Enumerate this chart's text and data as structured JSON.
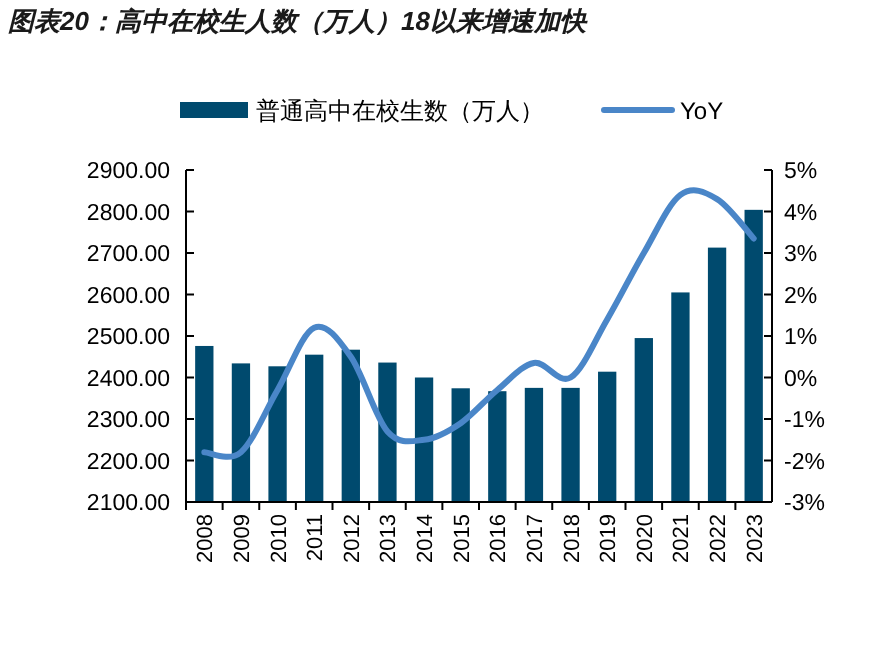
{
  "chart_data": {
    "type": "bar",
    "title": "图表20：高中在校生人数（万人）18以来增速加快",
    "categories": [
      "2008",
      "2009",
      "2010",
      "2011",
      "2012",
      "2013",
      "2014",
      "2015",
      "2016",
      "2017",
      "2018",
      "2019",
      "2020",
      "2021",
      "2022",
      "2023"
    ],
    "series": [
      {
        "name": "普通高中在校生数（万人）",
        "color": "#004a6e",
        "values": [
          2476,
          2434,
          2427,
          2455,
          2467,
          2436,
          2400,
          2374,
          2367,
          2375,
          2375,
          2414,
          2495,
          2605,
          2713,
          2804
        ]
      },
      {
        "name": "YoY",
        "type": "line",
        "axis": "y2",
        "color": "#4a86c8",
        "values": [
          -1.8,
          -1.8,
          -0.3,
          1.2,
          0.5,
          -1.3,
          -1.5,
          -1.1,
          -0.3,
          0.35,
          0.0,
          1.4,
          3.0,
          4.4,
          4.3,
          3.35
        ]
      }
    ],
    "ylim": [
      2100,
      2900
    ],
    "yticks": [
      {
        "value": 2100,
        "label": "2100.00"
      },
      {
        "value": 2200,
        "label": "2200.00"
      },
      {
        "value": 2300,
        "label": "2300.00"
      },
      {
        "value": 2400,
        "label": "2400.00"
      },
      {
        "value": 2500,
        "label": "2500.00"
      },
      {
        "value": 2600,
        "label": "2600.00"
      },
      {
        "value": 2700,
        "label": "2700.00"
      },
      {
        "value": 2800,
        "label": "2800.00"
      },
      {
        "value": 2900,
        "label": "2900.00"
      }
    ],
    "y2lim": [
      -3,
      5
    ],
    "y2ticks": [
      {
        "value": -3,
        "label": "-3%"
      },
      {
        "value": -2,
        "label": "-2%"
      },
      {
        "value": -1,
        "label": "-1%"
      },
      {
        "value": 0,
        "label": "0%"
      },
      {
        "value": 1,
        "label": "1%"
      },
      {
        "value": 2,
        "label": "2%"
      },
      {
        "value": 3,
        "label": "3%"
      },
      {
        "value": 4,
        "label": "4%"
      },
      {
        "value": 5,
        "label": "5%"
      }
    ],
    "legend": "top",
    "grid": false
  }
}
